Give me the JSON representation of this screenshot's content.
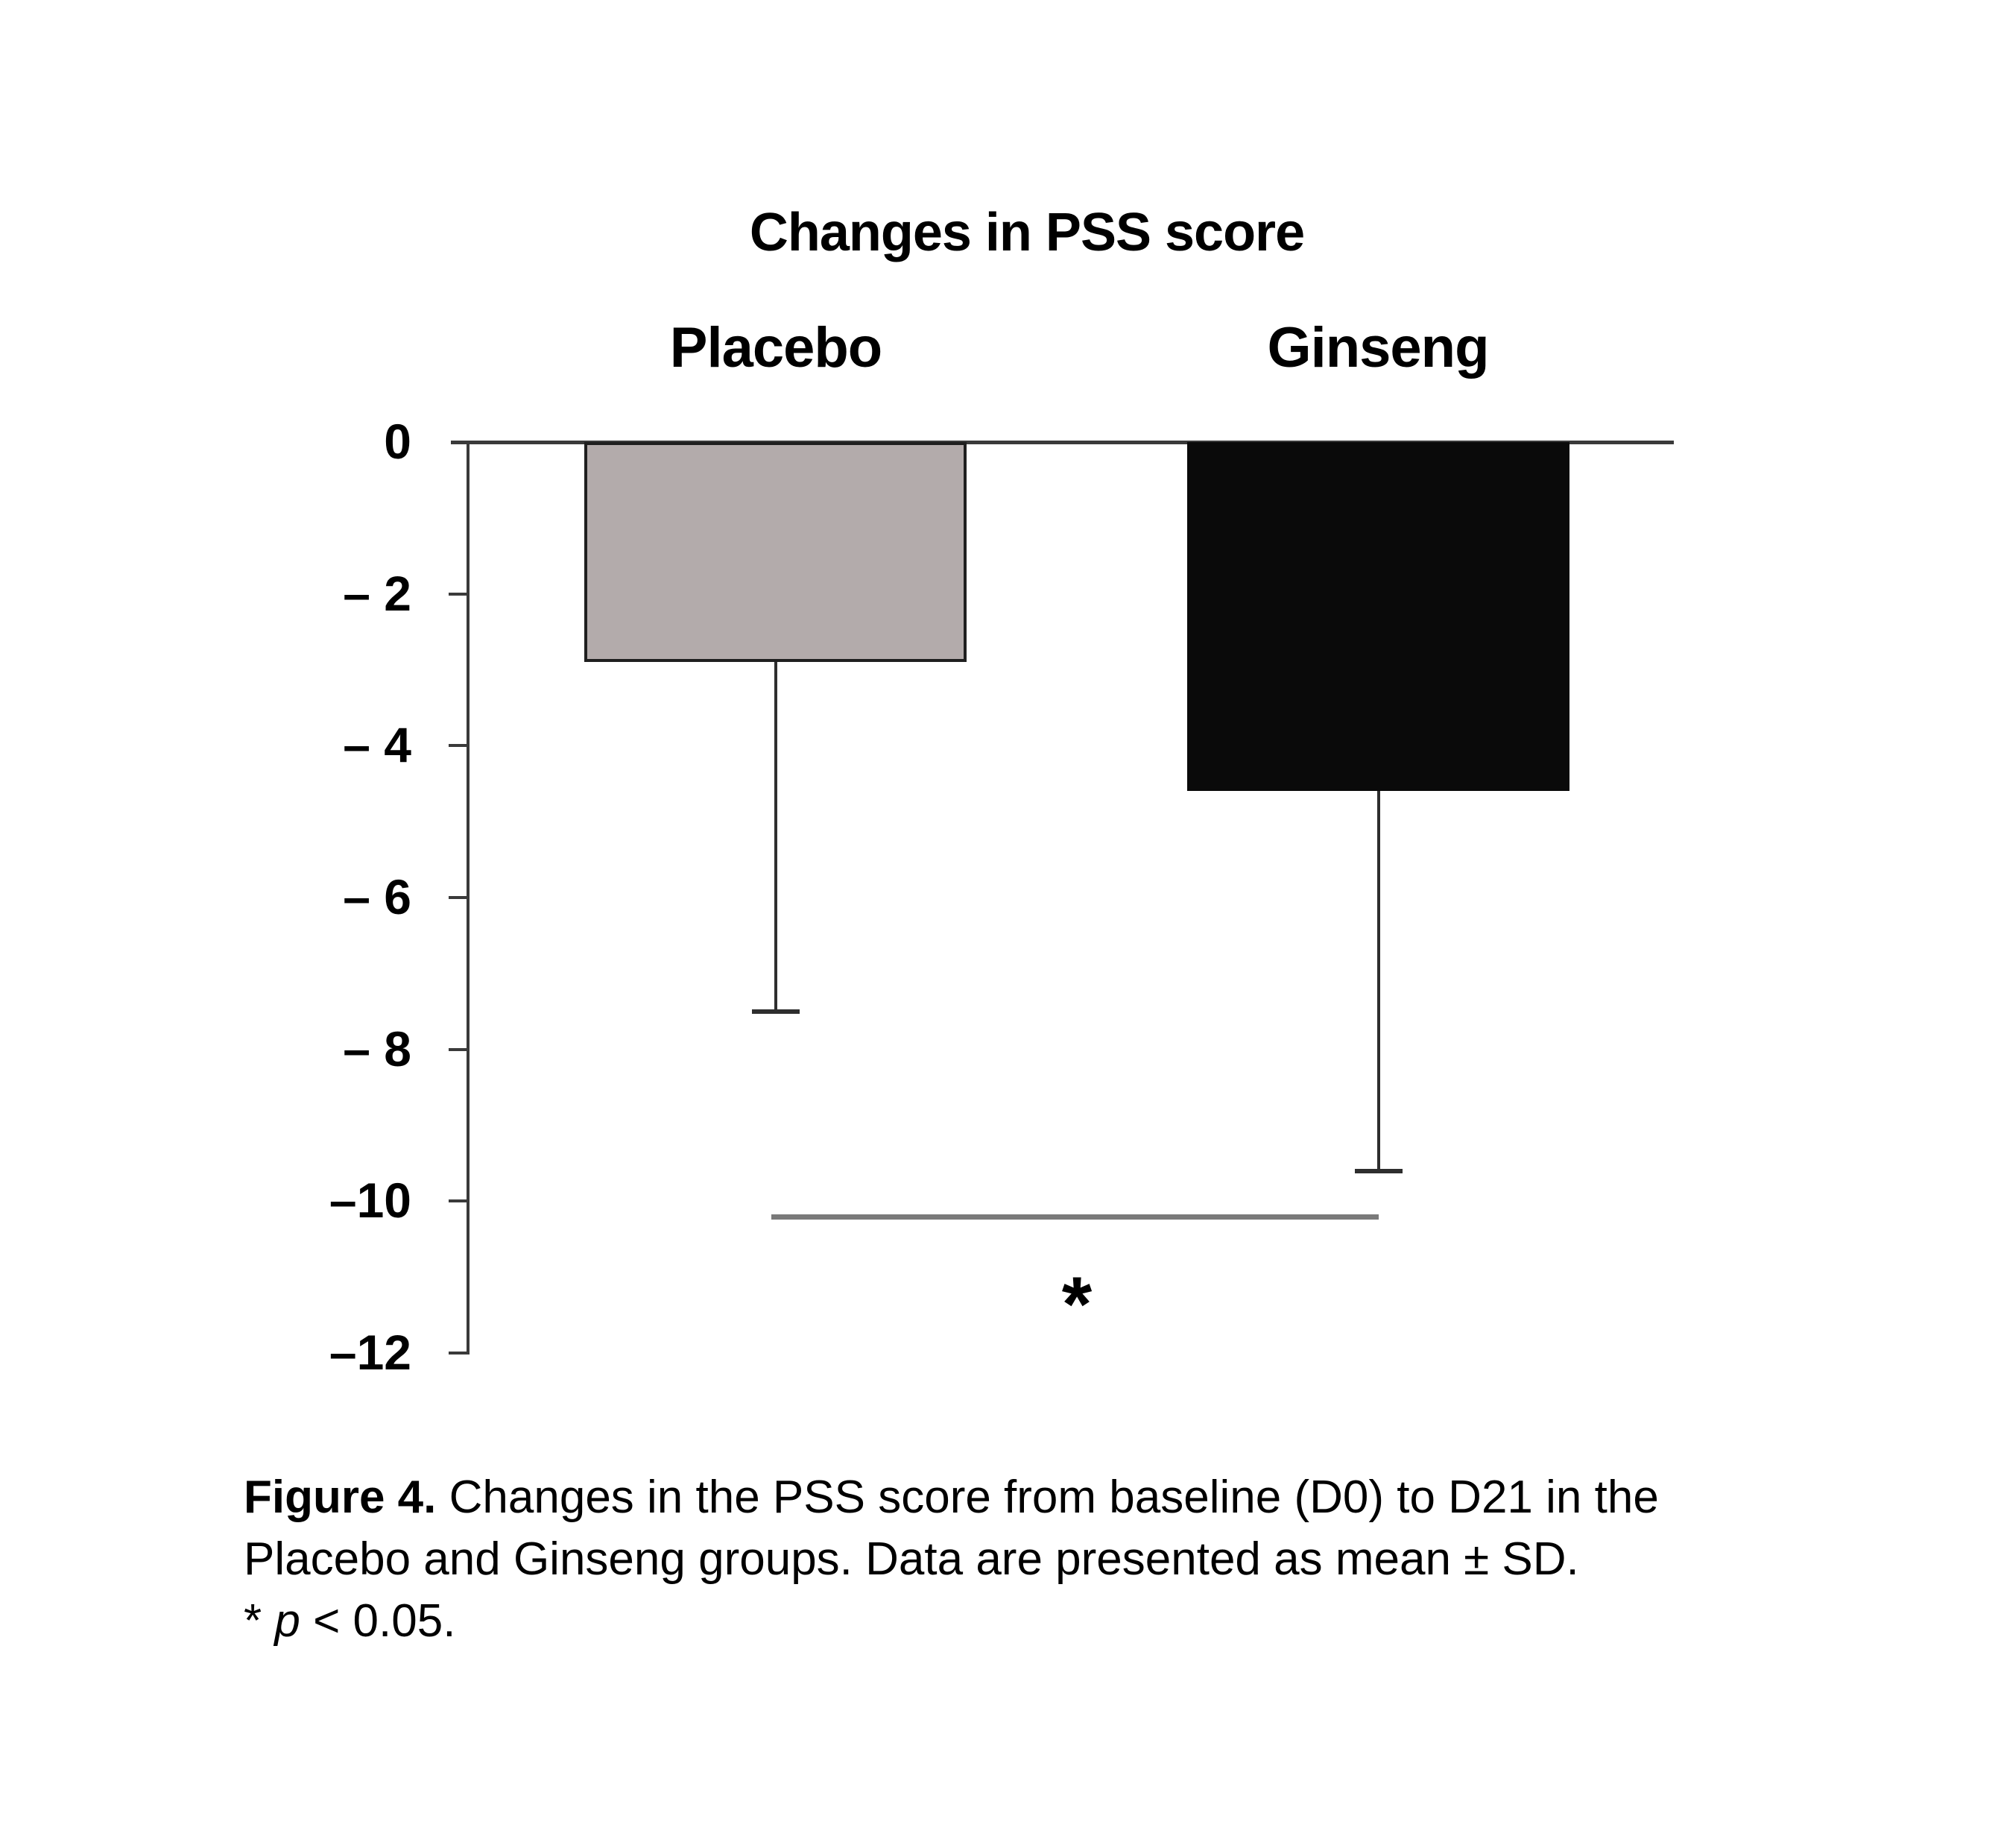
{
  "figure": {
    "caption": {
      "figure_label": "Figure 4.",
      "line1_rest": "Changes in the PSS score from baseline (D0) to D21 in the",
      "line2": "Placebo and Ginseng groups. Data are presented as mean ± SD.",
      "sig_prefix": "*",
      "p_symbol": "p",
      "sig_suffix": "< 0.05."
    }
  },
  "chart_data": {
    "type": "bar",
    "title": "Changes in PSS score",
    "categories": [
      "Placebo",
      "Ginseng"
    ],
    "series": [
      {
        "name": "Change in PSS score (mean, D0 to D21)",
        "values": [
          -2.9,
          -4.6
        ]
      }
    ],
    "error_sd": [
      4.6,
      5.0
    ],
    "error_tips": [
      -7.5,
      -9.6
    ],
    "bar_colors": [
      "#b3abab",
      "#0a0a0a"
    ],
    "bar_border_colors": [
      "#1f1f1f",
      "#0a0a0a"
    ],
    "ylim": [
      0,
      -12
    ],
    "yticks": [
      0,
      -2,
      -4,
      -6,
      -8,
      -10,
      -12
    ],
    "ytick_labels": [
      "0",
      "– 2",
      "– 4",
      "– 6",
      "– 8",
      "–10",
      "–12"
    ],
    "grid": false,
    "legend": "none",
    "orientation": "bars-extend-downward",
    "significance": {
      "label": "*",
      "y": -10.2,
      "between": [
        "Placebo",
        "Ginseng"
      ]
    }
  }
}
